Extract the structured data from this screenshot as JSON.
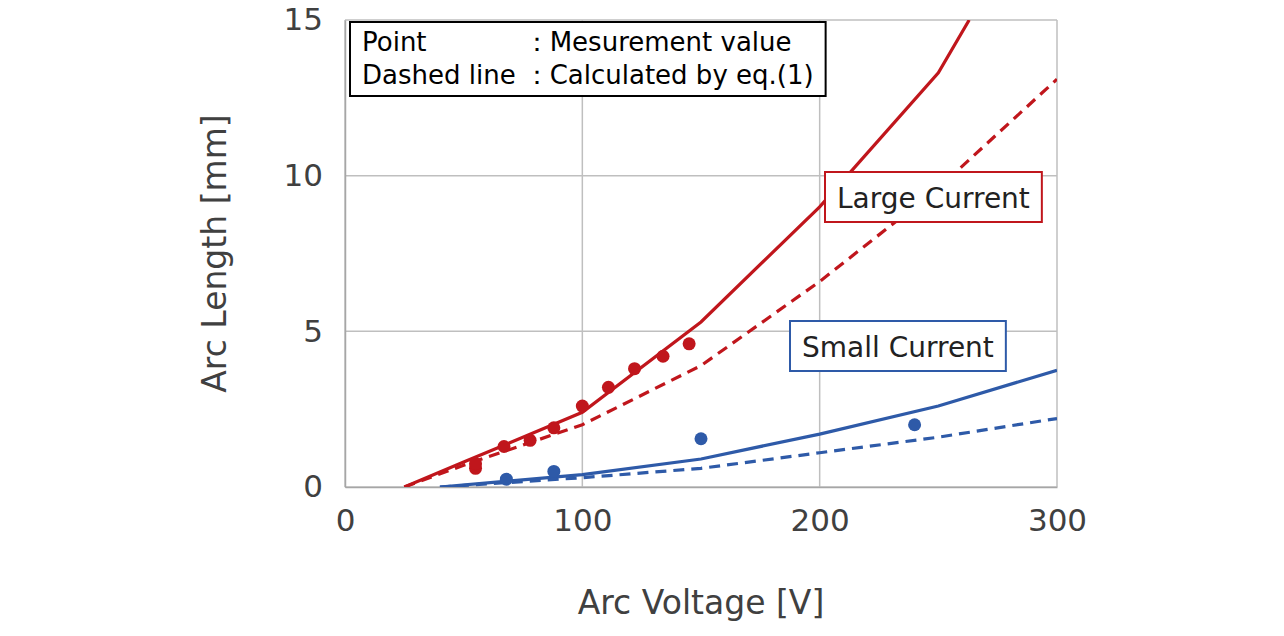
{
  "chart_data": {
    "type": "scatter",
    "x_label": "Arc Voltage [V]",
    "y_label": "Arc Length [mm]",
    "xlim": [
      0,
      300
    ],
    "ylim": [
      0,
      15
    ],
    "xticks": [
      0,
      100,
      200,
      300
    ],
    "yticks": [
      0,
      5,
      10,
      15
    ],
    "grid": true,
    "annotations": [
      {
        "term": "Point",
        "desc": "：Mesurement value"
      },
      {
        "term": "Dashed line",
        "desc": "：Calculated by eq.(1)"
      }
    ],
    "series": [
      {
        "name": "Large Current",
        "color": "#c0161c",
        "marker": "circle",
        "x": [
          55,
          55,
          67,
          78,
          88,
          100,
          111,
          122,
          134,
          145
        ],
        "values": [
          0.6,
          0.75,
          1.3,
          1.5,
          1.9,
          2.6,
          3.2,
          3.8,
          4.2,
          4.6
        ],
        "fit": {
          "line_style": "solid",
          "x": [
            25,
            50,
            100,
            150,
            200,
            250,
            263
          ],
          "values": [
            0,
            0.8,
            2.4,
            5.3,
            9.0,
            13.3,
            15
          ]
        },
        "calc": {
          "line_style": "dashed",
          "x": [
            25,
            50,
            100,
            150,
            200,
            250,
            300
          ],
          "values": [
            0,
            0.7,
            2.0,
            3.9,
            6.6,
            9.6,
            13.1
          ]
        }
      },
      {
        "name": "Small Current",
        "color": "#2e5aa8",
        "marker": "circle",
        "x": [
          68,
          88,
          150,
          240
        ],
        "values": [
          0.25,
          0.5,
          1.55,
          2.0
        ],
        "fit": {
          "line_style": "solid",
          "x": [
            40,
            100,
            150,
            200,
            250,
            300
          ],
          "values": [
            0,
            0.4,
            0.9,
            1.7,
            2.6,
            3.75
          ]
        },
        "calc": {
          "line_style": "dashed",
          "x": [
            40,
            100,
            150,
            200,
            250,
            300
          ],
          "values": [
            0,
            0.3,
            0.6,
            1.1,
            1.6,
            2.2
          ]
        }
      }
    ]
  }
}
